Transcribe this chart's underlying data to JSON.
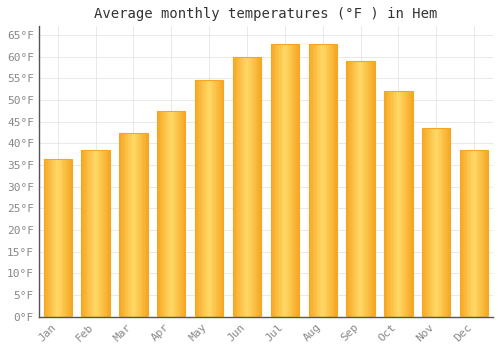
{
  "title": "Average monthly temperatures (°F ) in Hem",
  "months": [
    "Jan",
    "Feb",
    "Mar",
    "Apr",
    "May",
    "Jun",
    "Jul",
    "Aug",
    "Sep",
    "Oct",
    "Nov",
    "Dec"
  ],
  "values": [
    36.5,
    38.5,
    42.5,
    47.5,
    54.5,
    60,
    63,
    63,
    59,
    52,
    43.5,
    38.5
  ],
  "bar_color_center": "#FFD966",
  "bar_color_edge": "#F5A623",
  "background_color": "#FFFFFF",
  "grid_color": "#E0E0E0",
  "ylim": [
    0,
    67
  ],
  "yticks": [
    0,
    5,
    10,
    15,
    20,
    25,
    30,
    35,
    40,
    45,
    50,
    55,
    60,
    65
  ],
  "title_fontsize": 10,
  "tick_fontsize": 8,
  "tick_color": "#888888",
  "bar_width": 0.75
}
